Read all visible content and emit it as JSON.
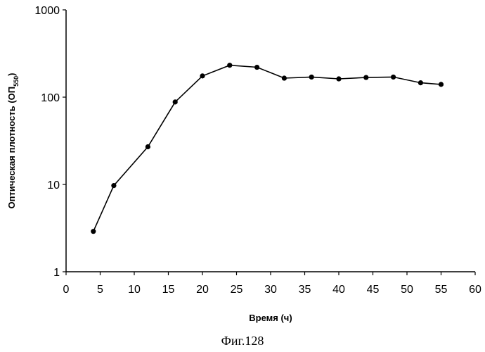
{
  "chart_data": {
    "type": "line",
    "title": "",
    "xlabel": "Время (ч)",
    "ylabel_main": "Оптическая плотность (ОП",
    "ylabel_sub": "550",
    "ylabel_close": ")",
    "yscale": "log",
    "xlim": [
      0,
      60
    ],
    "ylim": [
      1,
      1000
    ],
    "x_ticks": [
      "0",
      "5",
      "10",
      "15",
      "20",
      "25",
      "30",
      "35",
      "40",
      "45",
      "50",
      "55",
      "60"
    ],
    "y_ticks": [
      "1",
      "10",
      "100",
      "1000"
    ],
    "grid": false,
    "series": [
      {
        "name": "ОП550",
        "x": [
          4,
          7,
          12,
          16,
          20,
          24,
          28,
          32,
          36,
          40,
          44,
          48,
          52,
          55
        ],
        "y": [
          2.9,
          9.7,
          27,
          88,
          175,
          232,
          220,
          165,
          170,
          162,
          168,
          170,
          146,
          140
        ]
      }
    ]
  },
  "caption": "Фиг.128"
}
